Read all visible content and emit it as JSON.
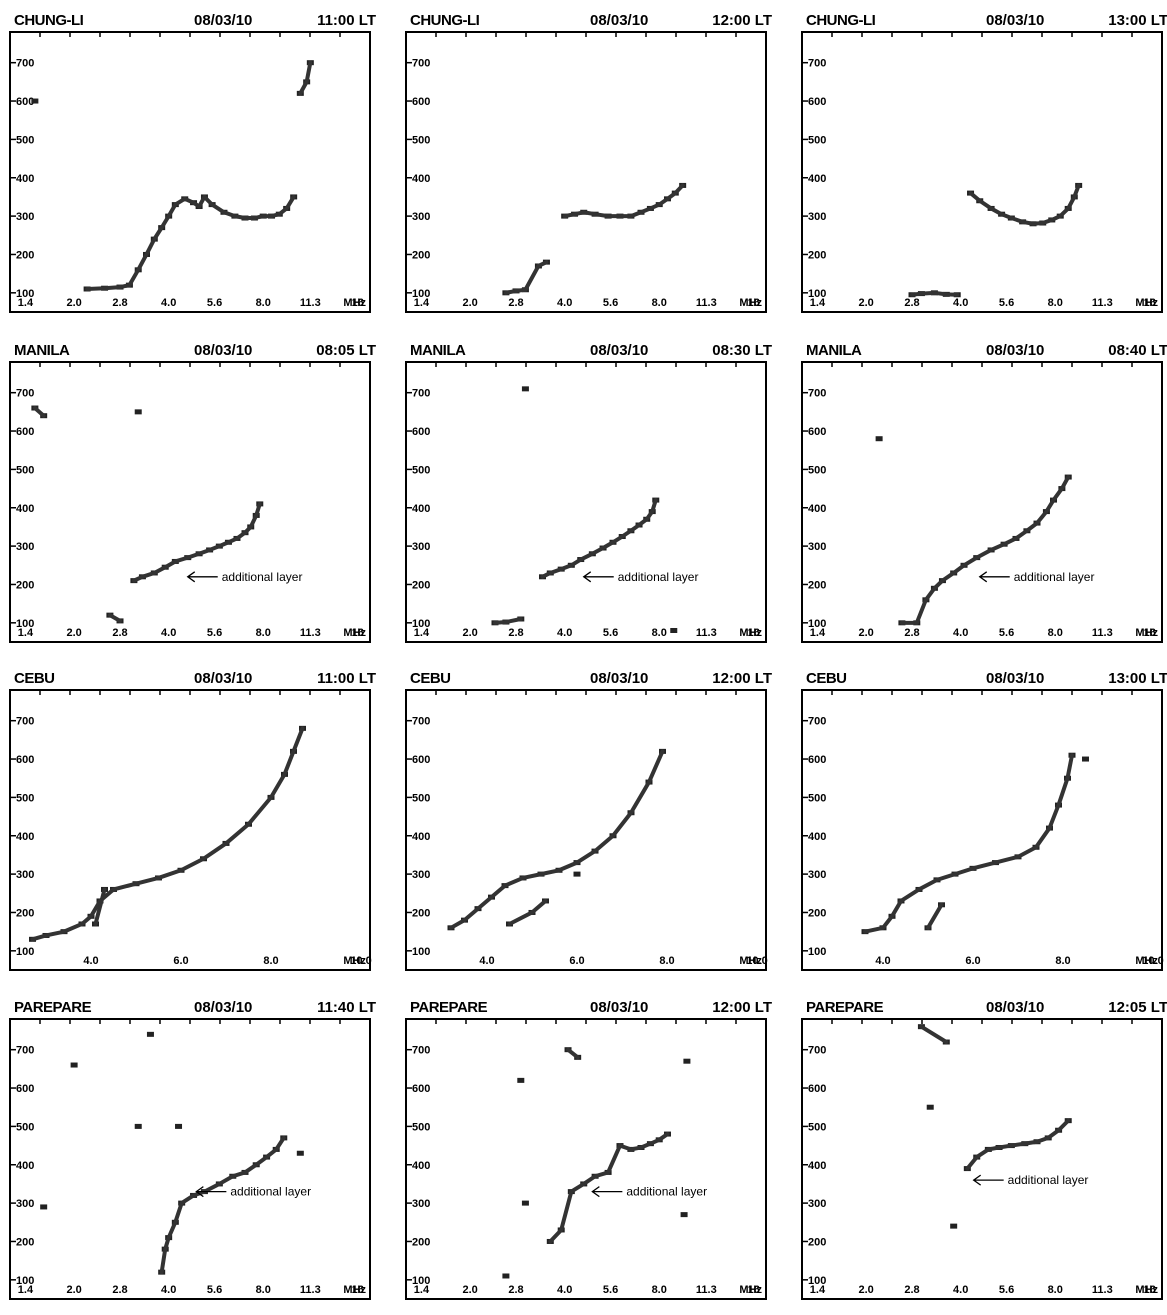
{
  "chart_data": [
    {
      "type": "scatter",
      "station": "CHUNG-LI",
      "date": "08/03/10",
      "time": "11:00 LT",
      "xticks": [
        "1.4",
        "2.0",
        "2.8",
        "4.0",
        "5.6",
        "8.0",
        "11.3",
        "16"
      ],
      "xunit": "MHz",
      "yticks": [
        "100",
        "200",
        "300",
        "400",
        "500",
        "600",
        "700"
      ],
      "annotation": "",
      "points": [
        [
          2.2,
          110
        ],
        [
          2.5,
          112
        ],
        [
          2.8,
          115
        ],
        [
          3.0,
          120
        ],
        [
          3.2,
          160
        ],
        [
          3.4,
          200
        ],
        [
          3.6,
          240
        ],
        [
          3.8,
          270
        ],
        [
          4.0,
          300
        ],
        [
          4.2,
          330
        ],
        [
          4.5,
          345
        ],
        [
          4.8,
          335
        ],
        [
          5.0,
          325
        ],
        [
          5.2,
          350
        ],
        [
          5.5,
          330
        ],
        [
          6.0,
          310
        ],
        [
          6.5,
          300
        ],
        [
          7.0,
          295
        ],
        [
          7.5,
          295
        ],
        [
          8.0,
          300
        ],
        [
          8.5,
          300
        ],
        [
          9.0,
          305
        ],
        [
          9.5,
          320
        ],
        [
          10.0,
          350
        ],
        [
          10.5,
          620
        ],
        [
          11.0,
          650
        ],
        [
          11.3,
          700
        ],
        [
          1.5,
          600
        ]
      ]
    },
    {
      "type": "scatter",
      "station": "CHUNG-LI",
      "date": "08/03/10",
      "time": "12:00 LT",
      "xticks": [
        "1.4",
        "2.0",
        "2.8",
        "4.0",
        "5.6",
        "8.0",
        "11.3",
        "16"
      ],
      "xunit": "MHz",
      "yticks": [
        "100",
        "200",
        "300",
        "400",
        "500",
        "600",
        "700"
      ],
      "annotation": "",
      "points": [
        [
          2.6,
          100
        ],
        [
          2.8,
          105
        ],
        [
          3.0,
          108
        ],
        [
          3.3,
          170
        ],
        [
          3.5,
          180
        ],
        [
          4.0,
          300
        ],
        [
          4.3,
          305
        ],
        [
          4.6,
          310
        ],
        [
          5.0,
          305
        ],
        [
          5.5,
          300
        ],
        [
          6.0,
          300
        ],
        [
          6.5,
          300
        ],
        [
          7.0,
          310
        ],
        [
          7.5,
          320
        ],
        [
          8.0,
          330
        ],
        [
          8.5,
          345
        ],
        [
          9.0,
          360
        ],
        [
          9.5,
          380
        ]
      ]
    },
    {
      "type": "scatter",
      "station": "CHUNG-LI",
      "date": "08/03/10",
      "time": "13:00 LT",
      "xticks": [
        "1.4",
        "2.0",
        "2.8",
        "4.0",
        "5.6",
        "8.0",
        "11.3",
        "16"
      ],
      "xunit": "MHz",
      "yticks": [
        "100",
        "200",
        "300",
        "400",
        "500",
        "600",
        "700"
      ],
      "annotation": "",
      "points": [
        [
          2.8,
          95
        ],
        [
          3.0,
          98
        ],
        [
          3.3,
          100
        ],
        [
          3.6,
          96
        ],
        [
          3.9,
          95
        ],
        [
          4.3,
          360
        ],
        [
          4.6,
          340
        ],
        [
          5.0,
          320
        ],
        [
          5.4,
          305
        ],
        [
          5.8,
          295
        ],
        [
          6.3,
          285
        ],
        [
          6.8,
          280
        ],
        [
          7.3,
          282
        ],
        [
          7.8,
          290
        ],
        [
          8.3,
          300
        ],
        [
          8.8,
          320
        ],
        [
          9.2,
          350
        ],
        [
          9.5,
          380
        ]
      ]
    },
    {
      "type": "scatter",
      "station": "MANILA",
      "date": "08/03/10",
      "time": "08:05 LT",
      "xticks": [
        "1.4",
        "2.0",
        "2.8",
        "4.0",
        "5.6",
        "8.0",
        "11.3",
        "16"
      ],
      "xunit": "MHz",
      "yticks": [
        "100",
        "200",
        "300",
        "400",
        "500",
        "600",
        "700"
      ],
      "annotation": "additional layer",
      "points": [
        [
          1.5,
          660
        ],
        [
          1.6,
          640
        ],
        [
          2.6,
          120
        ],
        [
          2.8,
          105
        ],
        [
          3.1,
          210
        ],
        [
          3.3,
          220
        ],
        [
          3.6,
          230
        ],
        [
          3.9,
          245
        ],
        [
          4.2,
          260
        ],
        [
          4.6,
          270
        ],
        [
          5.0,
          280
        ],
        [
          5.4,
          290
        ],
        [
          5.8,
          300
        ],
        [
          6.2,
          310
        ],
        [
          6.6,
          320
        ],
        [
          7.0,
          335
        ],
        [
          7.3,
          350
        ],
        [
          7.6,
          380
        ],
        [
          7.8,
          410
        ],
        [
          3.2,
          650
        ]
      ]
    },
    {
      "type": "scatter",
      "station": "MANILA",
      "date": "08/03/10",
      "time": "08:30 LT",
      "xticks": [
        "1.4",
        "2.0",
        "2.8",
        "4.0",
        "5.6",
        "8.0",
        "11.3",
        "16"
      ],
      "xunit": "MHz",
      "yticks": [
        "100",
        "200",
        "300",
        "400",
        "500",
        "600",
        "700"
      ],
      "annotation": "additional layer",
      "points": [
        [
          2.4,
          100
        ],
        [
          2.6,
          102
        ],
        [
          2.9,
          110
        ],
        [
          3.4,
          220
        ],
        [
          3.6,
          230
        ],
        [
          3.9,
          240
        ],
        [
          4.2,
          250
        ],
        [
          4.5,
          265
        ],
        [
          4.9,
          280
        ],
        [
          5.3,
          295
        ],
        [
          5.7,
          310
        ],
        [
          6.1,
          325
        ],
        [
          6.5,
          340
        ],
        [
          6.9,
          355
        ],
        [
          7.3,
          370
        ],
        [
          7.6,
          390
        ],
        [
          7.8,
          420
        ],
        [
          3.0,
          710
        ],
        [
          8.9,
          80
        ]
      ]
    },
    {
      "type": "scatter",
      "station": "MANILA",
      "date": "08/03/10",
      "time": "08:40 LT",
      "xticks": [
        "1.4",
        "2.0",
        "2.8",
        "4.0",
        "5.6",
        "8.0",
        "11.3",
        "16"
      ],
      "xunit": "MHz",
      "yticks": [
        "100",
        "200",
        "300",
        "400",
        "500",
        "600",
        "700"
      ],
      "annotation": "additional layer",
      "points": [
        [
          2.6,
          100
        ],
        [
          2.9,
          100
        ],
        [
          3.1,
          160
        ],
        [
          3.3,
          190
        ],
        [
          3.5,
          210
        ],
        [
          3.8,
          230
        ],
        [
          4.1,
          250
        ],
        [
          4.5,
          270
        ],
        [
          5.0,
          290
        ],
        [
          5.5,
          305
        ],
        [
          6.0,
          320
        ],
        [
          6.5,
          340
        ],
        [
          7.0,
          360
        ],
        [
          7.5,
          390
        ],
        [
          7.9,
          420
        ],
        [
          8.4,
          450
        ],
        [
          8.8,
          480
        ],
        [
          2.2,
          580
        ]
      ]
    },
    {
      "type": "scatter",
      "station": "CEBU",
      "date": "08/03/10",
      "time": "11:00 LT",
      "xticks": [
        "4.0",
        "6.0",
        "8.0",
        "10.0"
      ],
      "xunit": "MHz",
      "yticks": [
        "100",
        "200",
        "300",
        "400",
        "500",
        "600",
        "700"
      ],
      "annotation": "",
      "points": [
        [
          2.7,
          130
        ],
        [
          3.0,
          140
        ],
        [
          3.4,
          150
        ],
        [
          3.8,
          170
        ],
        [
          4.0,
          190
        ],
        [
          4.2,
          230
        ],
        [
          4.5,
          260
        ],
        [
          5.0,
          275
        ],
        [
          5.5,
          290
        ],
        [
          6.0,
          310
        ],
        [
          6.5,
          340
        ],
        [
          7.0,
          380
        ],
        [
          7.5,
          430
        ],
        [
          8.0,
          500
        ],
        [
          8.3,
          560
        ],
        [
          8.5,
          620
        ],
        [
          8.7,
          680
        ],
        [
          4.3,
          260
        ],
        [
          4.1,
          170
        ]
      ]
    },
    {
      "type": "scatter",
      "station": "CEBU",
      "date": "08/03/10",
      "time": "12:00 LT",
      "xticks": [
        "4.0",
        "6.0",
        "8.0",
        "10.0"
      ],
      "xunit": "MHz",
      "yticks": [
        "100",
        "200",
        "300",
        "400",
        "500",
        "600",
        "700"
      ],
      "annotation": "",
      "points": [
        [
          3.2,
          160
        ],
        [
          3.5,
          180
        ],
        [
          3.8,
          210
        ],
        [
          4.1,
          240
        ],
        [
          4.4,
          270
        ],
        [
          4.8,
          290
        ],
        [
          5.2,
          300
        ],
        [
          5.6,
          310
        ],
        [
          6.0,
          330
        ],
        [
          6.4,
          360
        ],
        [
          6.8,
          400
        ],
        [
          7.2,
          460
        ],
        [
          7.6,
          540
        ],
        [
          7.9,
          620
        ],
        [
          4.5,
          170
        ],
        [
          5.0,
          200
        ],
        [
          5.3,
          230
        ],
        [
          6.0,
          300
        ]
      ]
    },
    {
      "type": "scatter",
      "station": "CEBU",
      "date": "08/03/10",
      "time": "13:00 LT",
      "xticks": [
        "4.0",
        "6.0",
        "8.0",
        "10.0"
      ],
      "xunit": "MHz",
      "yticks": [
        "100",
        "200",
        "300",
        "400",
        "500",
        "600",
        "700"
      ],
      "annotation": "",
      "points": [
        [
          3.6,
          150
        ],
        [
          4.0,
          160
        ],
        [
          4.2,
          190
        ],
        [
          4.4,
          230
        ],
        [
          4.8,
          260
        ],
        [
          5.2,
          285
        ],
        [
          5.6,
          300
        ],
        [
          6.0,
          315
        ],
        [
          6.5,
          330
        ],
        [
          7.0,
          345
        ],
        [
          7.4,
          370
        ],
        [
          7.7,
          420
        ],
        [
          7.9,
          480
        ],
        [
          8.1,
          550
        ],
        [
          8.2,
          610
        ],
        [
          5.0,
          160
        ],
        [
          5.3,
          220
        ],
        [
          8.5,
          600
        ]
      ]
    },
    {
      "type": "scatter",
      "station": "PAREPARE",
      "date": "08/03/10",
      "time": "11:40 LT",
      "xticks": [
        "1.4",
        "2.0",
        "2.8",
        "4.0",
        "5.6",
        "8.0",
        "11.3",
        "16"
      ],
      "xunit": "MHz",
      "yticks": [
        "100",
        "200",
        "300",
        "400",
        "500",
        "600",
        "700"
      ],
      "annotation": "additional layer",
      "points": [
        [
          1.6,
          290
        ],
        [
          2.0,
          660
        ],
        [
          3.2,
          500
        ],
        [
          3.5,
          740
        ],
        [
          3.8,
          120
        ],
        [
          3.9,
          180
        ],
        [
          4.0,
          210
        ],
        [
          4.2,
          250
        ],
        [
          4.4,
          300
        ],
        [
          4.8,
          320
        ],
        [
          5.2,
          330
        ],
        [
          5.8,
          350
        ],
        [
          6.4,
          370
        ],
        [
          7.0,
          380
        ],
        [
          7.6,
          400
        ],
        [
          8.2,
          420
        ],
        [
          8.8,
          440
        ],
        [
          9.3,
          470
        ],
        [
          4.3,
          500
        ],
        [
          10.5,
          430
        ]
      ]
    },
    {
      "type": "scatter",
      "station": "PAREPARE",
      "date": "08/03/10",
      "time": "12:00 LT",
      "xticks": [
        "1.4",
        "2.0",
        "2.8",
        "4.0",
        "5.6",
        "8.0",
        "11.3",
        "16"
      ],
      "xunit": "MHz",
      "yticks": [
        "100",
        "200",
        "300",
        "400",
        "500",
        "600",
        "700"
      ],
      "annotation": "additional layer",
      "points": [
        [
          2.6,
          110
        ],
        [
          3.0,
          300
        ],
        [
          3.6,
          200
        ],
        [
          3.9,
          230
        ],
        [
          4.2,
          330
        ],
        [
          4.6,
          350
        ],
        [
          5.0,
          370
        ],
        [
          5.5,
          380
        ],
        [
          6.0,
          450
        ],
        [
          6.5,
          440
        ],
        [
          7.0,
          445
        ],
        [
          7.5,
          455
        ],
        [
          8.0,
          465
        ],
        [
          8.5,
          480
        ],
        [
          4.1,
          700
        ],
        [
          4.4,
          680
        ],
        [
          2.9,
          620
        ],
        [
          9.8,
          670
        ],
        [
          9.6,
          270
        ]
      ]
    },
    {
      "type": "scatter",
      "station": "PAREPARE",
      "date": "08/03/10",
      "time": "12:05 LT",
      "xticks": [
        "1.4",
        "2.0",
        "2.8",
        "4.0",
        "5.6",
        "8.0",
        "11.3",
        "16"
      ],
      "xunit": "MHz",
      "yticks": [
        "100",
        "200",
        "300",
        "400",
        "500",
        "600",
        "700"
      ],
      "annotation": "additional layer",
      "points": [
        [
          3.0,
          760
        ],
        [
          3.6,
          720
        ],
        [
          3.2,
          550
        ],
        [
          3.8,
          240
        ],
        [
          4.2,
          390
        ],
        [
          4.5,
          420
        ],
        [
          4.9,
          440
        ],
        [
          5.3,
          445
        ],
        [
          5.8,
          450
        ],
        [
          6.4,
          455
        ],
        [
          7.0,
          460
        ],
        [
          7.6,
          470
        ],
        [
          8.2,
          490
        ],
        [
          8.8,
          515
        ]
      ]
    }
  ]
}
